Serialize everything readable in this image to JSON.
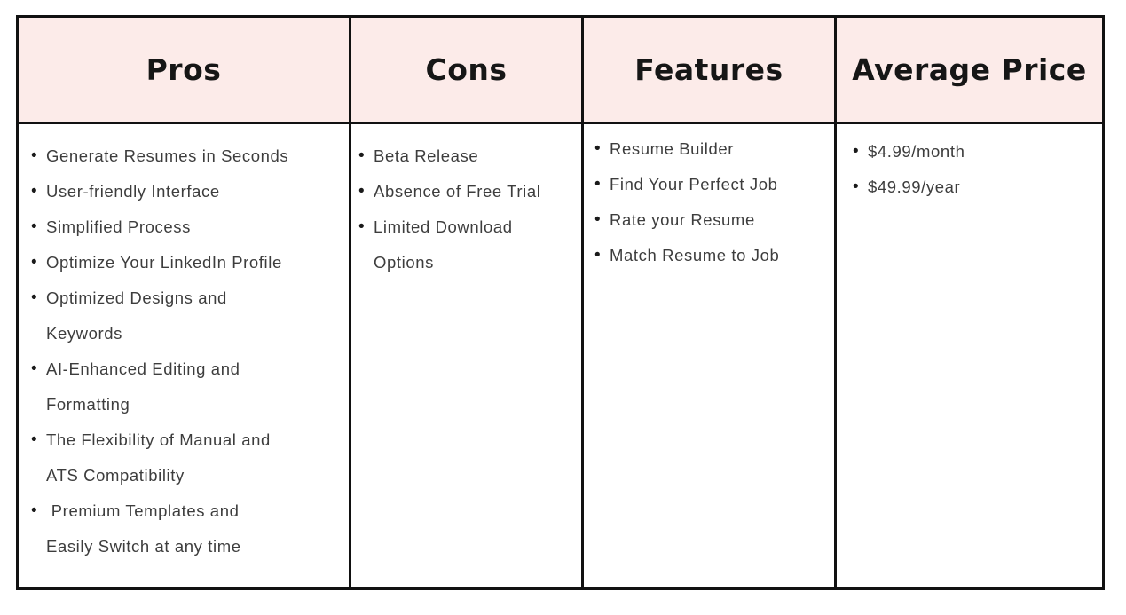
{
  "table": {
    "border_color": "#111111",
    "header_background": "#fcebe9",
    "bullet_glyph": "•",
    "columns": [
      {
        "header": "Pros",
        "items": [
          "Generate Resumes in Seconds",
          "User-friendly Interface",
          "Simplified Process",
          "Optimize Your LinkedIn Profile",
          "Optimized Designs and\nKeywords",
          "AI-Enhanced Editing and\nFormatting",
          "The Flexibility of Manual and\nATS Compatibility",
          " Premium Templates and\nEasily Switch at any time"
        ]
      },
      {
        "header": "Cons",
        "items": [
          "Beta Release",
          "Absence of Free Trial",
          "Limited Download\nOptions"
        ]
      },
      {
        "header": "Features",
        "items": [
          "Resume Builder",
          "Find Your Perfect Job",
          "Rate your Resume",
          "Match Resume to Job"
        ]
      },
      {
        "header": "Average Price",
        "items": [
          "$4.99/month",
          "$49.99/year"
        ]
      }
    ]
  }
}
